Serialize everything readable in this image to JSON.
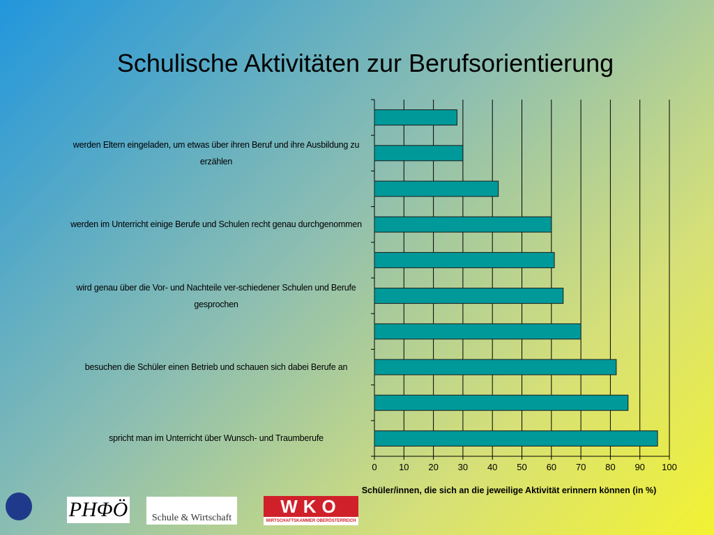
{
  "chart_data": {
    "type": "barh",
    "title": "Schulische Aktivitäten zur Berufsorientierung",
    "categories": [
      null,
      "werden Eltern eingeladen, um etwas über ihren Beruf und ihre Ausbildung zu erzählen",
      null,
      "werden im Unterricht einige Berufe und Schulen recht genau durchgenommen",
      null,
      "wird genau über die Vor- und Nachteile ver-schiedener Schulen und Berufe gesprochen",
      null,
      "besuchen die Schüler einen Betrieb und schauen sich dabei Berufe an",
      null,
      "spricht man im Unterricht über Wunsch- und Traumberufe"
    ],
    "values": [
      28,
      30,
      42,
      60,
      61,
      64,
      70,
      82,
      86,
      96
    ],
    "color": "#009999",
    "xlim": [
      0,
      100
    ],
    "xticks": [
      0,
      10,
      20,
      30,
      40,
      50,
      60,
      70,
      80,
      90,
      100
    ],
    "xlabel": "Schüler/innen, die sich an die jeweilige Aktivität erinnern können (in %)",
    "grid": true
  },
  "logos": [
    "PHΦÖ",
    "Schule & Wirtschaft",
    "WKO",
    "WIRTSCHAFTSKAMMER OBERÖSTERREICH"
  ]
}
